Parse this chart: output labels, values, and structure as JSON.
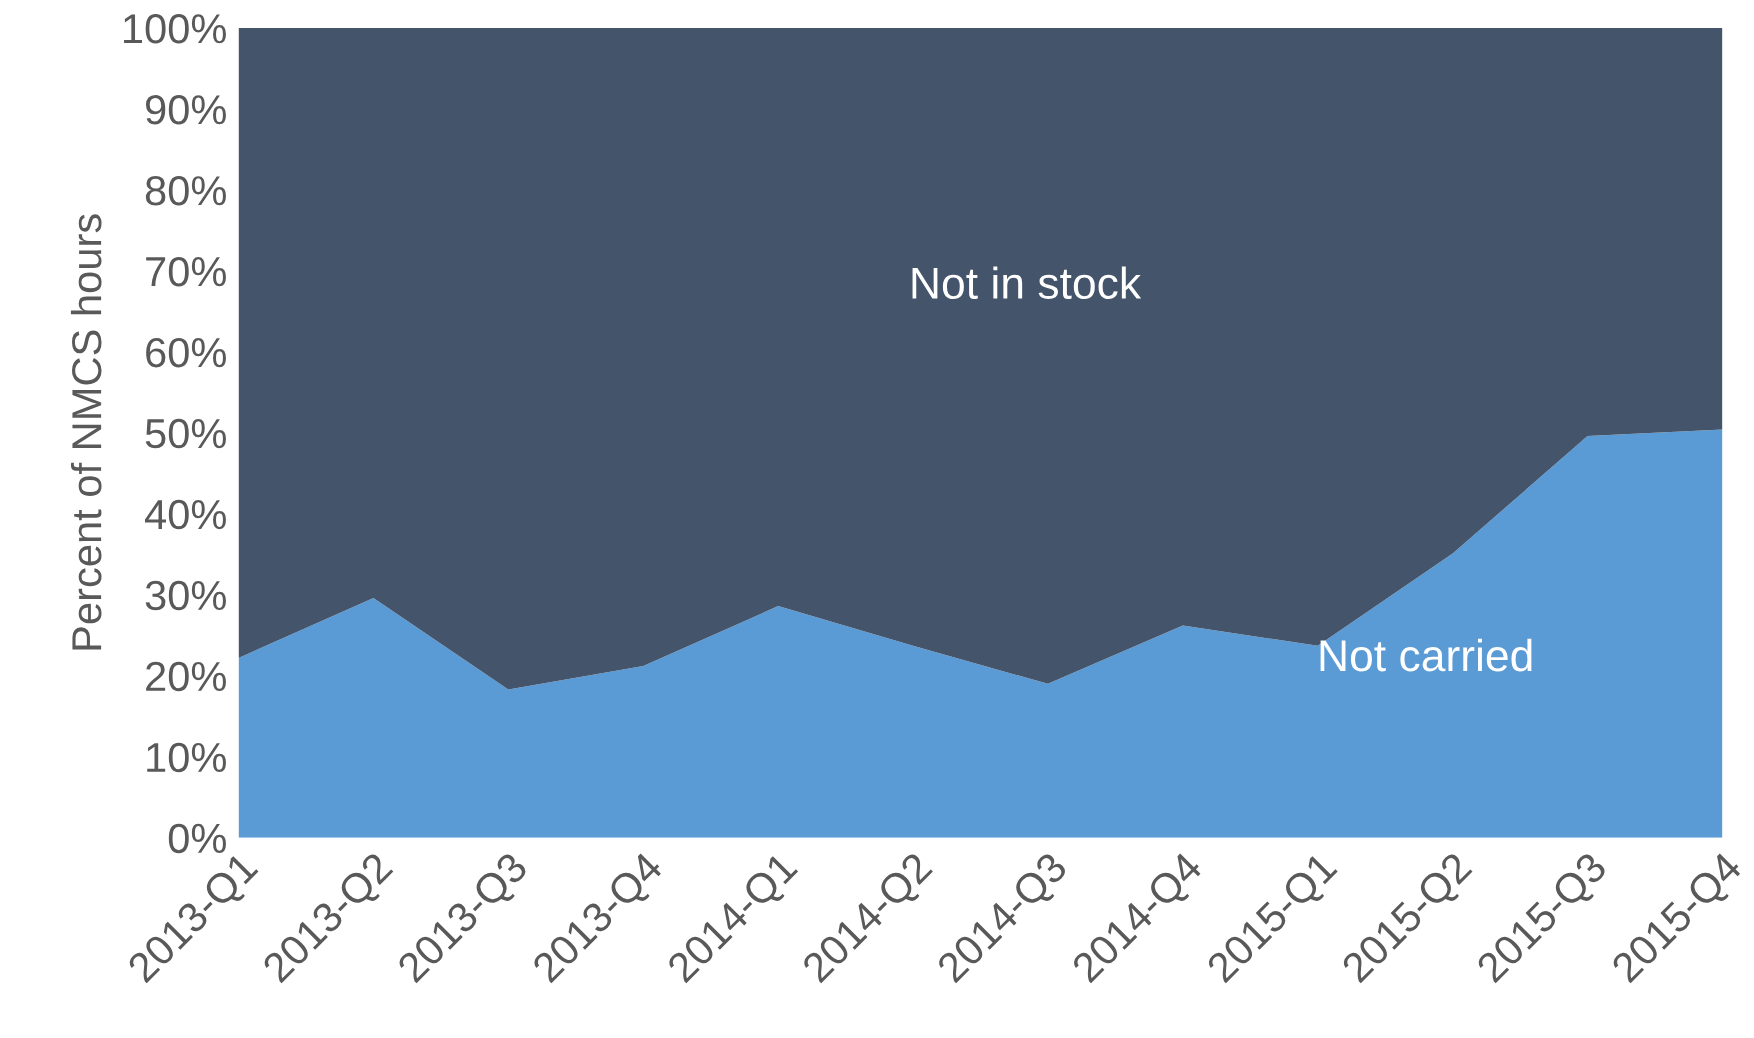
{
  "chart_data": {
    "type": "area",
    "stacked": true,
    "ylabel": "Percent of NMCS hours",
    "categories": [
      "2013-Q1",
      "2013-Q2",
      "2013-Q3",
      "2013-Q4",
      "2014-Q1",
      "2014-Q2",
      "2014-Q3",
      "2014-Q4",
      "2015-Q1",
      "2015-Q2",
      "2015-Q3",
      "2015-Q4"
    ],
    "series": [
      {
        "name": "Not carried",
        "color": "#5b9bd5",
        "values": [
          22.2,
          29.6,
          18.3,
          21.2,
          28.6,
          23.7,
          19.0,
          26.2,
          23.7,
          35.1,
          49.6,
          50.4
        ]
      },
      {
        "name": "Not in stock",
        "color": "#44546a",
        "values": [
          77.8,
          70.4,
          81.7,
          78.8,
          71.4,
          76.3,
          81.0,
          73.8,
          76.3,
          64.9,
          50.4,
          49.6
        ]
      }
    ],
    "ylim": [
      0,
      100
    ],
    "yticks": [
      {
        "value": 0,
        "label": "0%"
      },
      {
        "value": 10,
        "label": "10%"
      },
      {
        "value": 20,
        "label": "20%"
      },
      {
        "value": 30,
        "label": "30%"
      },
      {
        "value": 40,
        "label": "40%"
      },
      {
        "value": 50,
        "label": "50%"
      },
      {
        "value": 60,
        "label": "60%"
      },
      {
        "value": 70,
        "label": "70%"
      },
      {
        "value": 80,
        "label": "80%"
      },
      {
        "value": 90,
        "label": "90%"
      },
      {
        "value": 100,
        "label": "100%"
      }
    ],
    "grid": false,
    "legend": false
  }
}
